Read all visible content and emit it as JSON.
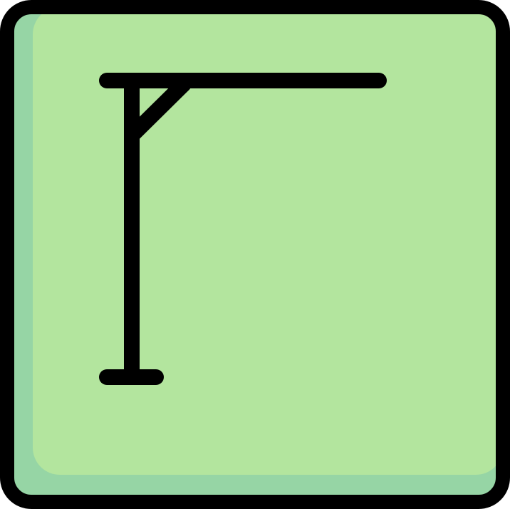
{
  "icon": {
    "name": "hangman-gallows-icon",
    "colors": {
      "tile_fill": "#b3e59e",
      "tile_shade": "#96d5a5",
      "outline": "#000000",
      "page_background": "#ffffff"
    }
  }
}
